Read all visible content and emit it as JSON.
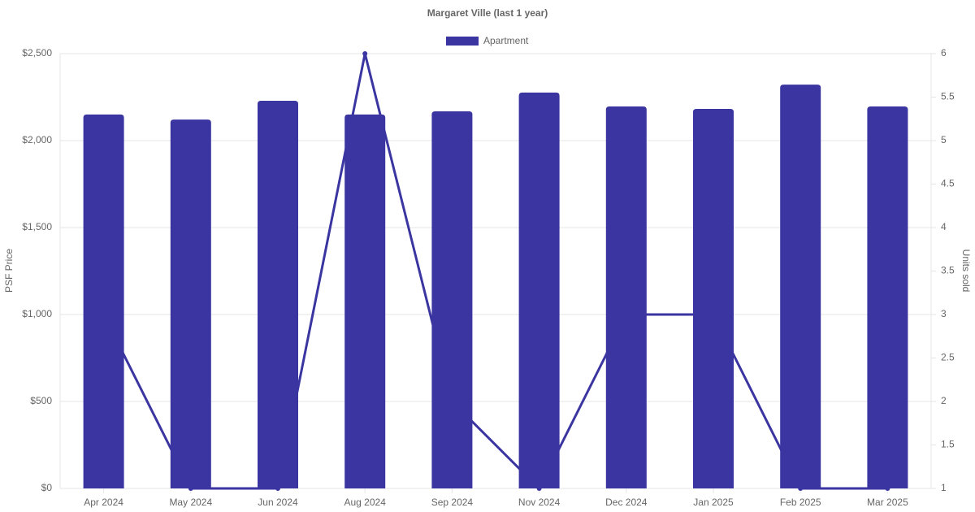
{
  "chart_data": {
    "type": "bar",
    "title": "Margaret Ville (last 1 year)",
    "y_label": "PSF Price",
    "y2_label": "Units sold",
    "categories": [
      "Apr 2024",
      "May 2024",
      "Jun 2024",
      "Aug 2024",
      "Sep 2024",
      "Nov 2024",
      "Dec 2024",
      "Jan 2025",
      "Feb 2025",
      "Mar 2025"
    ],
    "series": [
      {
        "name": "Apartment",
        "type": "bar",
        "color": "#3a35a0",
        "values": [
          2150,
          2121,
          2229,
          2150,
          2168,
          2276,
          2196,
          2182,
          2322,
          2196
        ]
      },
      {
        "type": "line",
        "axis": "y2",
        "color": "#3a35a0",
        "values": [
          3,
          1,
          1,
          6,
          2,
          1,
          3,
          3,
          1,
          1
        ]
      }
    ],
    "ylim": [
      0,
      2500
    ],
    "yticks": [
      {
        "value": 0,
        "label": "$0"
      },
      {
        "value": 500,
        "label": "$500"
      },
      {
        "value": 1000,
        "label": "$1,000"
      },
      {
        "value": 1500,
        "label": "$1,500"
      },
      {
        "value": 2000,
        "label": "$2,000"
      },
      {
        "value": 2500,
        "label": "$2,500"
      }
    ],
    "y2lim": [
      1,
      6
    ],
    "y2ticks": [
      1,
      1.5,
      2,
      2.5,
      3,
      3.5,
      4,
      4.5,
      5,
      5.5,
      6
    ],
    "grid": true,
    "legend": "top"
  }
}
